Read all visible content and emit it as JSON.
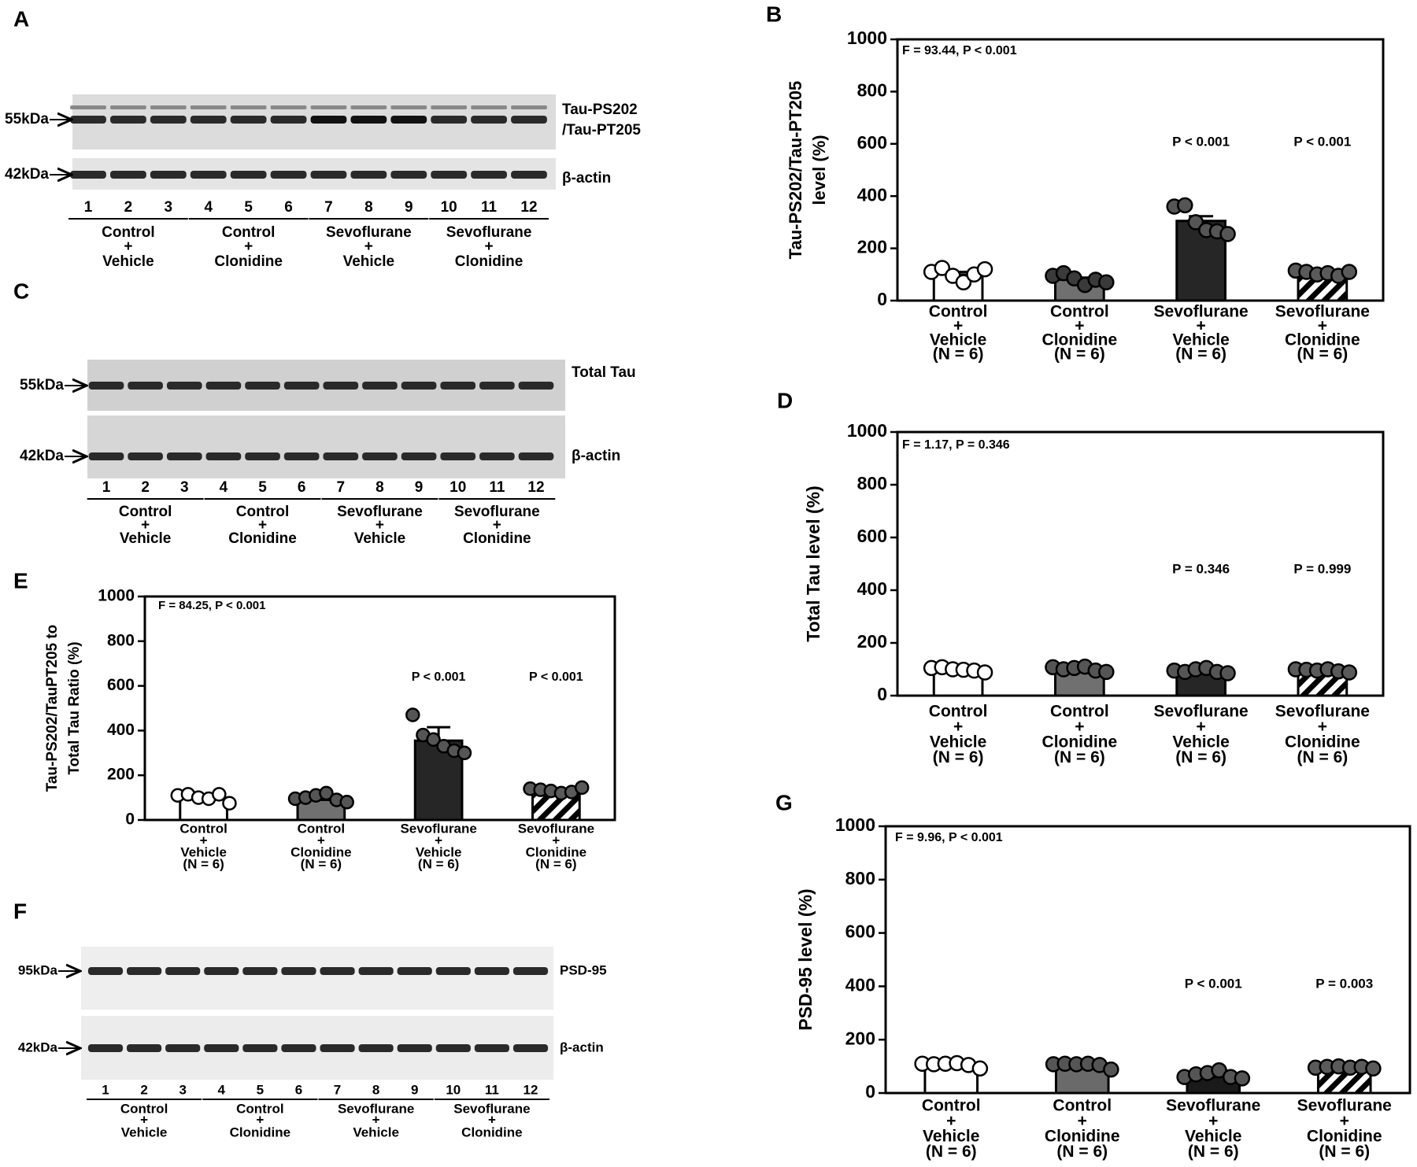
{
  "blots": [
    {
      "panel_label": "A",
      "bands": [
        {
          "marker": "55kDa",
          "label": [
            "Tau-PS202",
            "/Tau-PT205"
          ]
        },
        {
          "marker": "42kDa",
          "label": [
            "β-actin"
          ]
        }
      ],
      "lanes": [
        "1",
        "2",
        "3",
        "4",
        "5",
        "6",
        "7",
        "8",
        "9",
        "10",
        "11",
        "12"
      ],
      "groups": [
        [
          "Control",
          "+",
          "Vehicle"
        ],
        [
          "Control",
          "+",
          "Clonidine"
        ],
        [
          "Sevoflurane",
          "+",
          "Vehicle"
        ],
        [
          "Sevoflurane",
          "+",
          "Clonidine"
        ]
      ]
    },
    {
      "panel_label": "C",
      "bands": [
        {
          "marker": "55kDa",
          "label": [
            "Total Tau"
          ]
        },
        {
          "marker": "42kDa",
          "label": [
            "β-actin"
          ]
        }
      ],
      "lanes": [
        "1",
        "2",
        "3",
        "4",
        "5",
        "6",
        "7",
        "8",
        "9",
        "10",
        "11",
        "12"
      ],
      "groups": [
        [
          "Control",
          "+",
          "Vehicle"
        ],
        [
          "Control",
          "+",
          "Clonidine"
        ],
        [
          "Sevoflurane",
          "+",
          "Vehicle"
        ],
        [
          "Sevoflurane",
          "+",
          "Clonidine"
        ]
      ]
    },
    {
      "panel_label": "F",
      "bands": [
        {
          "marker": "95kDa",
          "label": [
            "PSD-95"
          ]
        },
        {
          "marker": "42kDa",
          "label": [
            "β-actin"
          ]
        }
      ],
      "lanes": [
        "1",
        "2",
        "3",
        "4",
        "5",
        "6",
        "7",
        "8",
        "9",
        "10",
        "11",
        "12"
      ],
      "groups": [
        [
          "Control",
          "+",
          "Vehicle"
        ],
        [
          "Control",
          "+",
          "Clonidine"
        ],
        [
          "Sevoflurane",
          "+",
          "Vehicle"
        ],
        [
          "Sevoflurane",
          "+",
          "Clonidine"
        ]
      ]
    }
  ],
  "chart_data": [
    {
      "type": "bar",
      "panel_label": "B",
      "ylabel": [
        "Tau-PS202/Tau-PT205",
        "level (%)"
      ],
      "stat_text": "F = 93.44, P < 0.001",
      "categories": [
        [
          "Control",
          "+",
          "Vehicle",
          "(N = 6)"
        ],
        [
          "Control",
          "+",
          "Clonidine",
          "(N = 6)"
        ],
        [
          "Sevoflurane",
          "+",
          "Vehicle",
          "(N = 6)"
        ],
        [
          "Sevoflurane",
          "+",
          "Clonidine",
          "(N = 6)"
        ]
      ],
      "values": [
        100,
        80,
        305,
        105
      ],
      "errors": [
        10,
        8,
        18,
        6
      ],
      "points": [
        [
          110,
          125,
          95,
          70,
          100,
          120
        ],
        [
          95,
          105,
          85,
          60,
          80,
          70
        ],
        [
          360,
          365,
          300,
          270,
          265,
          255
        ],
        [
          115,
          110,
          100,
          105,
          95,
          110
        ]
      ],
      "annotations": [
        null,
        null,
        "P < 0.001",
        "P < 0.001"
      ],
      "bar_colors": [
        "#ffffff",
        "#707070",
        "#262626",
        "#ffffff"
      ],
      "hatched": [
        false,
        false,
        false,
        true
      ],
      "point_colors": [
        "#ffffff",
        "#3a3a3a",
        "#555555",
        "#5a5a5a"
      ],
      "ylim": [
        0,
        1000
      ],
      "yticks": [
        0,
        200,
        400,
        600,
        800,
        1000
      ]
    },
    {
      "type": "bar",
      "panel_label": "D",
      "ylabel": [
        "Total Tau level (%)"
      ],
      "stat_text": "F = 1.17, P = 0.346",
      "categories": [
        [
          "Control",
          "+",
          "Vehicle",
          "(N = 6)"
        ],
        [
          "Control",
          "+",
          "Clonidine",
          "(N = 6)"
        ],
        [
          "Sevoflurane",
          "+",
          "Vehicle",
          "(N = 6)"
        ],
        [
          "Sevoflurane",
          "+",
          "Clonidine",
          "(N = 6)"
        ]
      ],
      "values": [
        100,
        100,
        90,
        95
      ],
      "errors": [
        4,
        5,
        6,
        4
      ],
      "points": [
        [
          105,
          108,
          100,
          98,
          95,
          88
        ],
        [
          108,
          100,
          105,
          110,
          95,
          90
        ],
        [
          95,
          90,
          100,
          105,
          90,
          85
        ],
        [
          100,
          98,
          95,
          100,
          92,
          88
        ]
      ],
      "annotations": [
        null,
        null,
        "P = 0.346",
        "P = 0.999"
      ],
      "bar_colors": [
        "#ffffff",
        "#707070",
        "#262626",
        "#ffffff"
      ],
      "hatched": [
        false,
        false,
        false,
        true
      ],
      "point_colors": [
        "#ffffff",
        "#555555",
        "#555555",
        "#5a5a5a"
      ],
      "ylim": [
        0,
        1000
      ],
      "yticks": [
        0,
        200,
        400,
        600,
        800,
        1000
      ]
    },
    {
      "type": "bar",
      "panel_label": "E",
      "ylabel": [
        "Tau-PS202/TauPT205 to",
        "Total Tau Ratio (%)"
      ],
      "stat_text": "F = 84.25, P < 0.001",
      "categories": [
        [
          "Control",
          "+",
          "Vehicle",
          "(N = 6)"
        ],
        [
          "Control",
          "+",
          "Clonidine",
          "(N = 6)"
        ],
        [
          "Sevoflurane",
          "+",
          "Vehicle",
          "(N = 6)"
        ],
        [
          "Sevoflurane",
          "+",
          "Clonidine",
          "(N = 6)"
        ]
      ],
      "values": [
        100,
        90,
        355,
        130
      ],
      "errors": [
        10,
        10,
        60,
        8
      ],
      "points": [
        [
          110,
          115,
          100,
          95,
          115,
          75
        ],
        [
          95,
          100,
          110,
          120,
          90,
          80
        ],
        [
          470,
          380,
          360,
          330,
          310,
          300
        ],
        [
          140,
          135,
          130,
          120,
          125,
          145
        ]
      ],
      "annotations": [
        null,
        null,
        "P < 0.001",
        "P < 0.001"
      ],
      "bar_colors": [
        "#ffffff",
        "#707070",
        "#262626",
        "#ffffff"
      ],
      "hatched": [
        false,
        false,
        false,
        true
      ],
      "point_colors": [
        "#ffffff",
        "#555555",
        "#555555",
        "#5a5a5a"
      ],
      "ylim": [
        0,
        1000
      ],
      "yticks": [
        0,
        200,
        400,
        600,
        800,
        1000
      ]
    },
    {
      "type": "bar",
      "panel_label": "G",
      "ylabel": [
        "PSD-95 level (%)"
      ],
      "stat_text": "F = 9.96, P < 0.001",
      "categories": [
        [
          "Control",
          "+",
          "Vehicle",
          "(N = 6)"
        ],
        [
          "Control",
          "+",
          "Clonidine",
          "(N = 6)"
        ],
        [
          "Sevoflurane",
          "+",
          "Vehicle",
          "(N = 6)"
        ],
        [
          "Sevoflurane",
          "+",
          "Clonidine",
          "(N = 6)"
        ]
      ],
      "values": [
        100,
        95,
        60,
        90
      ],
      "errors": [
        5,
        15,
        20,
        5
      ],
      "points": [
        [
          110,
          108,
          110,
          112,
          105,
          92
        ],
        [
          108,
          110,
          108,
          110,
          105,
          88
        ],
        [
          60,
          70,
          75,
          85,
          60,
          55
        ],
        [
          95,
          98,
          100,
          95,
          98,
          92
        ]
      ],
      "annotations": [
        null,
        null,
        "P < 0.001",
        "P = 0.003"
      ],
      "bar_colors": [
        "#ffffff",
        "#6a6a6a",
        "#1a1a1a",
        "#ffffff"
      ],
      "hatched": [
        false,
        false,
        false,
        true
      ],
      "point_colors": [
        "#ffffff",
        "#555555",
        "#555555",
        "#5a5a5a"
      ],
      "ylim": [
        0,
        1000
      ],
      "yticks": [
        0,
        200,
        400,
        600,
        800,
        1000
      ]
    }
  ]
}
